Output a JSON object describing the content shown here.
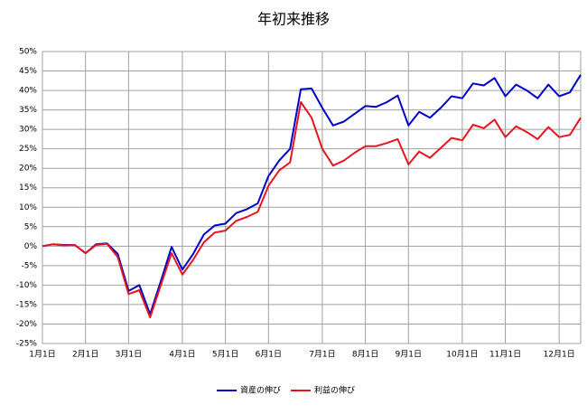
{
  "chart_data": {
    "type": "line",
    "title": "年初来推移",
    "categories": [
      "1月1日",
      null,
      null,
      null,
      "2月1日",
      null,
      null,
      null,
      "3月1日",
      null,
      null,
      null,
      null,
      "4月1日",
      null,
      null,
      null,
      "5月1日",
      null,
      null,
      null,
      "6月1日",
      null,
      null,
      null,
      null,
      "7月1日",
      null,
      null,
      null,
      "8月1日",
      null,
      null,
      null,
      "9月1日",
      null,
      null,
      null,
      null,
      "10月1日",
      null,
      null,
      null,
      "11月1日",
      null,
      null,
      null,
      null,
      "12月1日",
      null,
      null
    ],
    "series": [
      {
        "name": "資産の伸び",
        "color": "#0000cc",
        "values": [
          0,
          0.5,
          0.3,
          0.3,
          -1.8,
          0.5,
          0.7,
          -2,
          -11.5,
          -10,
          -17.5,
          -9,
          -0.2,
          -6,
          -2,
          3,
          5.3,
          5.8,
          8.5,
          9.5,
          11,
          18,
          22,
          25,
          40.3,
          40.5,
          35.5,
          31,
          32,
          34,
          36,
          35.8,
          37,
          38.7,
          31,
          34.5,
          33,
          35.5,
          38.5,
          38,
          41.8,
          41.3,
          43.2,
          38.5,
          41.5,
          40,
          38,
          41.5,
          38.5,
          39.5,
          44
        ]
      },
      {
        "name": "利益の伸び",
        "color": "#e8141e",
        "values": [
          0,
          0.5,
          0.2,
          0.3,
          -1.8,
          0.3,
          0.6,
          -2.8,
          -12.3,
          -11.3,
          -18.3,
          -10,
          -1.8,
          -7.3,
          -3.5,
          1,
          3.5,
          4,
          6.5,
          7.5,
          8.8,
          15.5,
          19.5,
          21.5,
          37,
          33,
          25,
          20.7,
          22,
          24,
          25.7,
          25.7,
          26.5,
          27.5,
          21,
          24.3,
          22.7,
          25.2,
          27.8,
          27.2,
          31.2,
          30.3,
          32.5,
          28,
          30.8,
          29.3,
          27.5,
          30.6,
          28,
          28.6,
          33
        ]
      }
    ],
    "ylim": [
      -25,
      50
    ],
    "yticks": [
      {
        "value": -25,
        "label": "-25%"
      },
      {
        "value": -20,
        "label": "-20%"
      },
      {
        "value": -15,
        "label": "-15%"
      },
      {
        "value": -10,
        "label": "-10%"
      },
      {
        "value": -5,
        "label": "-5%"
      },
      {
        "value": 0,
        "label": "0%"
      },
      {
        "value": 5,
        "label": "5%"
      },
      {
        "value": 10,
        "label": "10%"
      },
      {
        "value": 15,
        "label": "15%"
      },
      {
        "value": 20,
        "label": "20%"
      },
      {
        "value": 25,
        "label": "25%"
      },
      {
        "value": 30,
        "label": "30%"
      },
      {
        "value": 35,
        "label": "35%"
      },
      {
        "value": 40,
        "label": "40%"
      },
      {
        "value": 45,
        "label": "45%"
      },
      {
        "value": 50,
        "label": "50%"
      }
    ],
    "grid": true,
    "legend": "bottom"
  }
}
